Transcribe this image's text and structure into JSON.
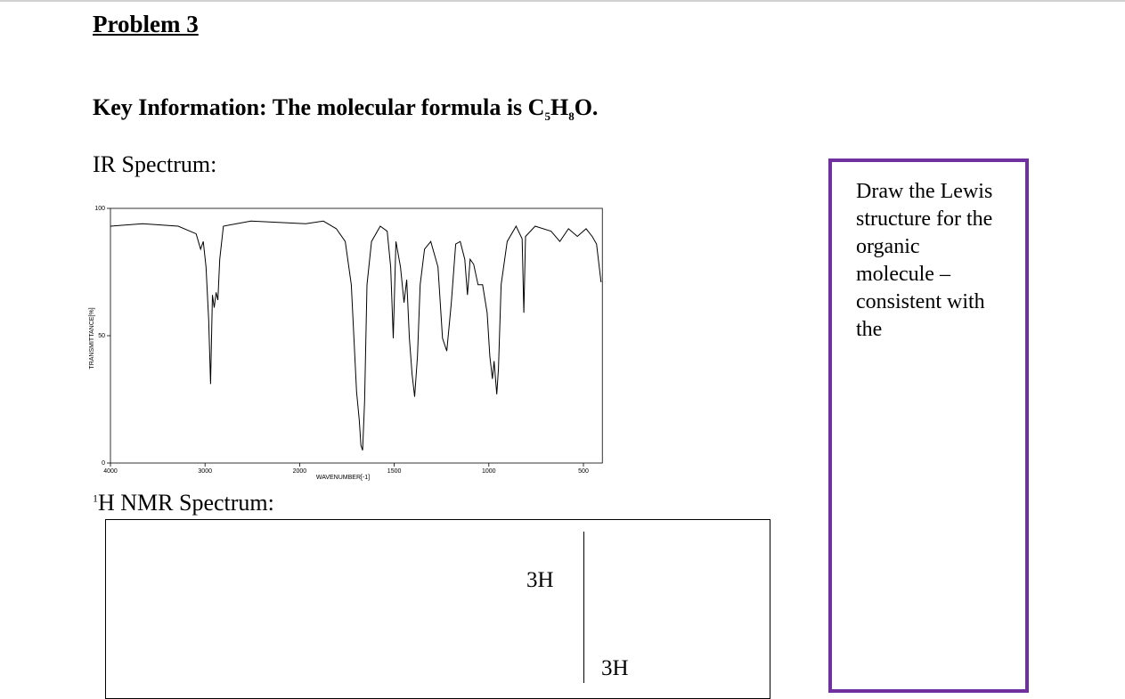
{
  "problem": {
    "title": "Problem 3"
  },
  "key_info": {
    "text": "Key Information: The molecular formula is",
    "formula": [
      {
        "symbol": "C",
        "count": 5
      },
      {
        "symbol": "H",
        "count": 8
      },
      {
        "symbol": "O"
      }
    ],
    "end": "."
  },
  "ir_heading": "IR Spectrum:",
  "ir_spectrum": {
    "type": "line",
    "x_label": "WAVENUMBER[-1]",
    "y_label": "TRANSMITTANCE[%]",
    "xlim": [
      4000,
      400
    ],
    "ylim": [
      0,
      100
    ],
    "xticks": [
      4000,
      3000,
      2000,
      1500,
      1000,
      500
    ],
    "yticks": [
      0,
      50,
      100
    ],
    "color": "#000000",
    "x": [
      4000,
      3660,
      3283,
      3094,
      3047,
      3019,
      2990,
      2961,
      2942,
      2922,
      2903,
      2883,
      2864,
      2845,
      2806,
      2515,
      1968,
      1875,
      1806,
      1759,
      1727,
      1699,
      1685,
      1676,
      1667,
      1657,
      1644,
      1620,
      1574,
      1537,
      1519,
      1505,
      1491,
      1467,
      1448,
      1434,
      1420,
      1406,
      1392,
      1377,
      1363,
      1340,
      1307,
      1269,
      1245,
      1222,
      1198,
      1175,
      1151,
      1127,
      1113,
      1099,
      1080,
      1057,
      1033,
      1009,
      995,
      981,
      972,
      958,
      949,
      935,
      903,
      856,
      824,
      815,
      806,
      755,
      671,
      625,
      579,
      532,
      486,
      454,
      431,
      407
    ],
    "values": [
      93,
      94,
      93,
      90,
      84,
      87,
      77,
      56,
      31,
      66,
      61,
      67,
      64,
      80,
      93,
      95,
      94,
      95,
      92,
      87,
      70,
      28,
      17,
      7,
      5,
      24,
      70,
      87,
      93,
      91,
      77,
      49,
      87,
      77,
      63,
      72,
      49,
      35,
      26,
      42,
      70,
      84,
      87,
      77,
      49,
      44,
      63,
      86,
      87,
      80,
      66,
      80,
      78,
      70,
      70,
      59,
      42,
      33,
      40,
      27,
      37,
      70,
      87,
      93,
      88,
      59,
      89,
      93,
      91,
      87,
      92,
      89,
      92,
      89,
      86,
      71
    ]
  },
  "nmr": {
    "heading_sup": "1",
    "heading": "H NMR Spectrum:",
    "labels": [
      "3H",
      "3H"
    ]
  },
  "lewis_box": {
    "lines": [
      "Draw the Lewis",
      "structure for the",
      "organic",
      "molecule –",
      "consistent with",
      "the"
    ]
  }
}
